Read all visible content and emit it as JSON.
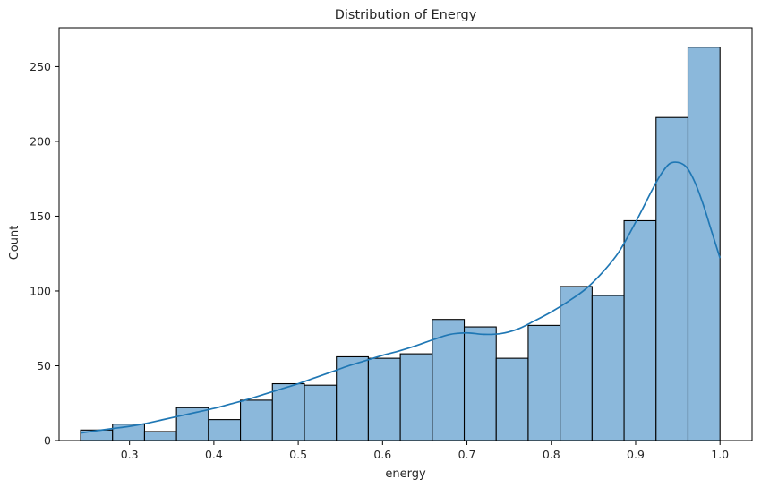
{
  "chart_data": {
    "type": "bar",
    "title": "Distribution of Energy",
    "xlabel": "energy",
    "ylabel": "Count",
    "xlim": [
      0.2165,
      1.038
    ],
    "ylim": [
      0,
      276
    ],
    "x_ticks": [
      0.3,
      0.4,
      0.5,
      0.6,
      0.7,
      0.8,
      0.9,
      1.0
    ],
    "x_tick_labels": [
      "0.3",
      "0.4",
      "0.5",
      "0.6",
      "0.7",
      "0.8",
      "0.9",
      "1.0"
    ],
    "y_ticks": [
      0,
      50,
      100,
      150,
      200,
      250
    ],
    "y_tick_labels": [
      "0",
      "50",
      "100",
      "150",
      "200",
      "250"
    ],
    "bin_edges": [
      0.242,
      0.2799,
      0.3178,
      0.3557,
      0.3936,
      0.4315,
      0.4694,
      0.5073,
      0.5452,
      0.5831,
      0.621,
      0.6589,
      0.6968,
      0.7347,
      0.7726,
      0.8105,
      0.8484,
      0.8863,
      0.9242,
      0.9621,
      1.0
    ],
    "values": [
      7,
      11,
      6,
      22,
      14,
      27,
      38,
      37,
      56,
      55,
      58,
      81,
      76,
      55,
      77,
      103,
      97,
      147,
      216,
      263
    ],
    "kde": {
      "x": [
        0.242,
        0.26,
        0.28,
        0.3,
        0.32,
        0.34,
        0.36,
        0.38,
        0.4,
        0.42,
        0.44,
        0.46,
        0.48,
        0.5,
        0.52,
        0.54,
        0.56,
        0.58,
        0.6,
        0.62,
        0.64,
        0.66,
        0.68,
        0.7,
        0.72,
        0.74,
        0.76,
        0.78,
        0.8,
        0.82,
        0.84,
        0.86,
        0.88,
        0.9,
        0.92,
        0.93,
        0.94,
        0.95,
        0.96,
        0.97,
        0.98,
        0.99,
        1.0
      ],
      "y": [
        5,
        6.5,
        8,
        9.5,
        11.5,
        14,
        16.5,
        19,
        21.5,
        24.5,
        27.5,
        31,
        34.5,
        38,
        42,
        46,
        50,
        53.5,
        57,
        60,
        63.5,
        67.5,
        71,
        72,
        71,
        71.5,
        74.5,
        80,
        86,
        93,
        101,
        112,
        126,
        146,
        168,
        178,
        185,
        186,
        183,
        173,
        158,
        140,
        122
      ]
    },
    "bar_color": "#8bb8db",
    "line_color": "#1f77b4",
    "grid": false,
    "legend": "none"
  }
}
